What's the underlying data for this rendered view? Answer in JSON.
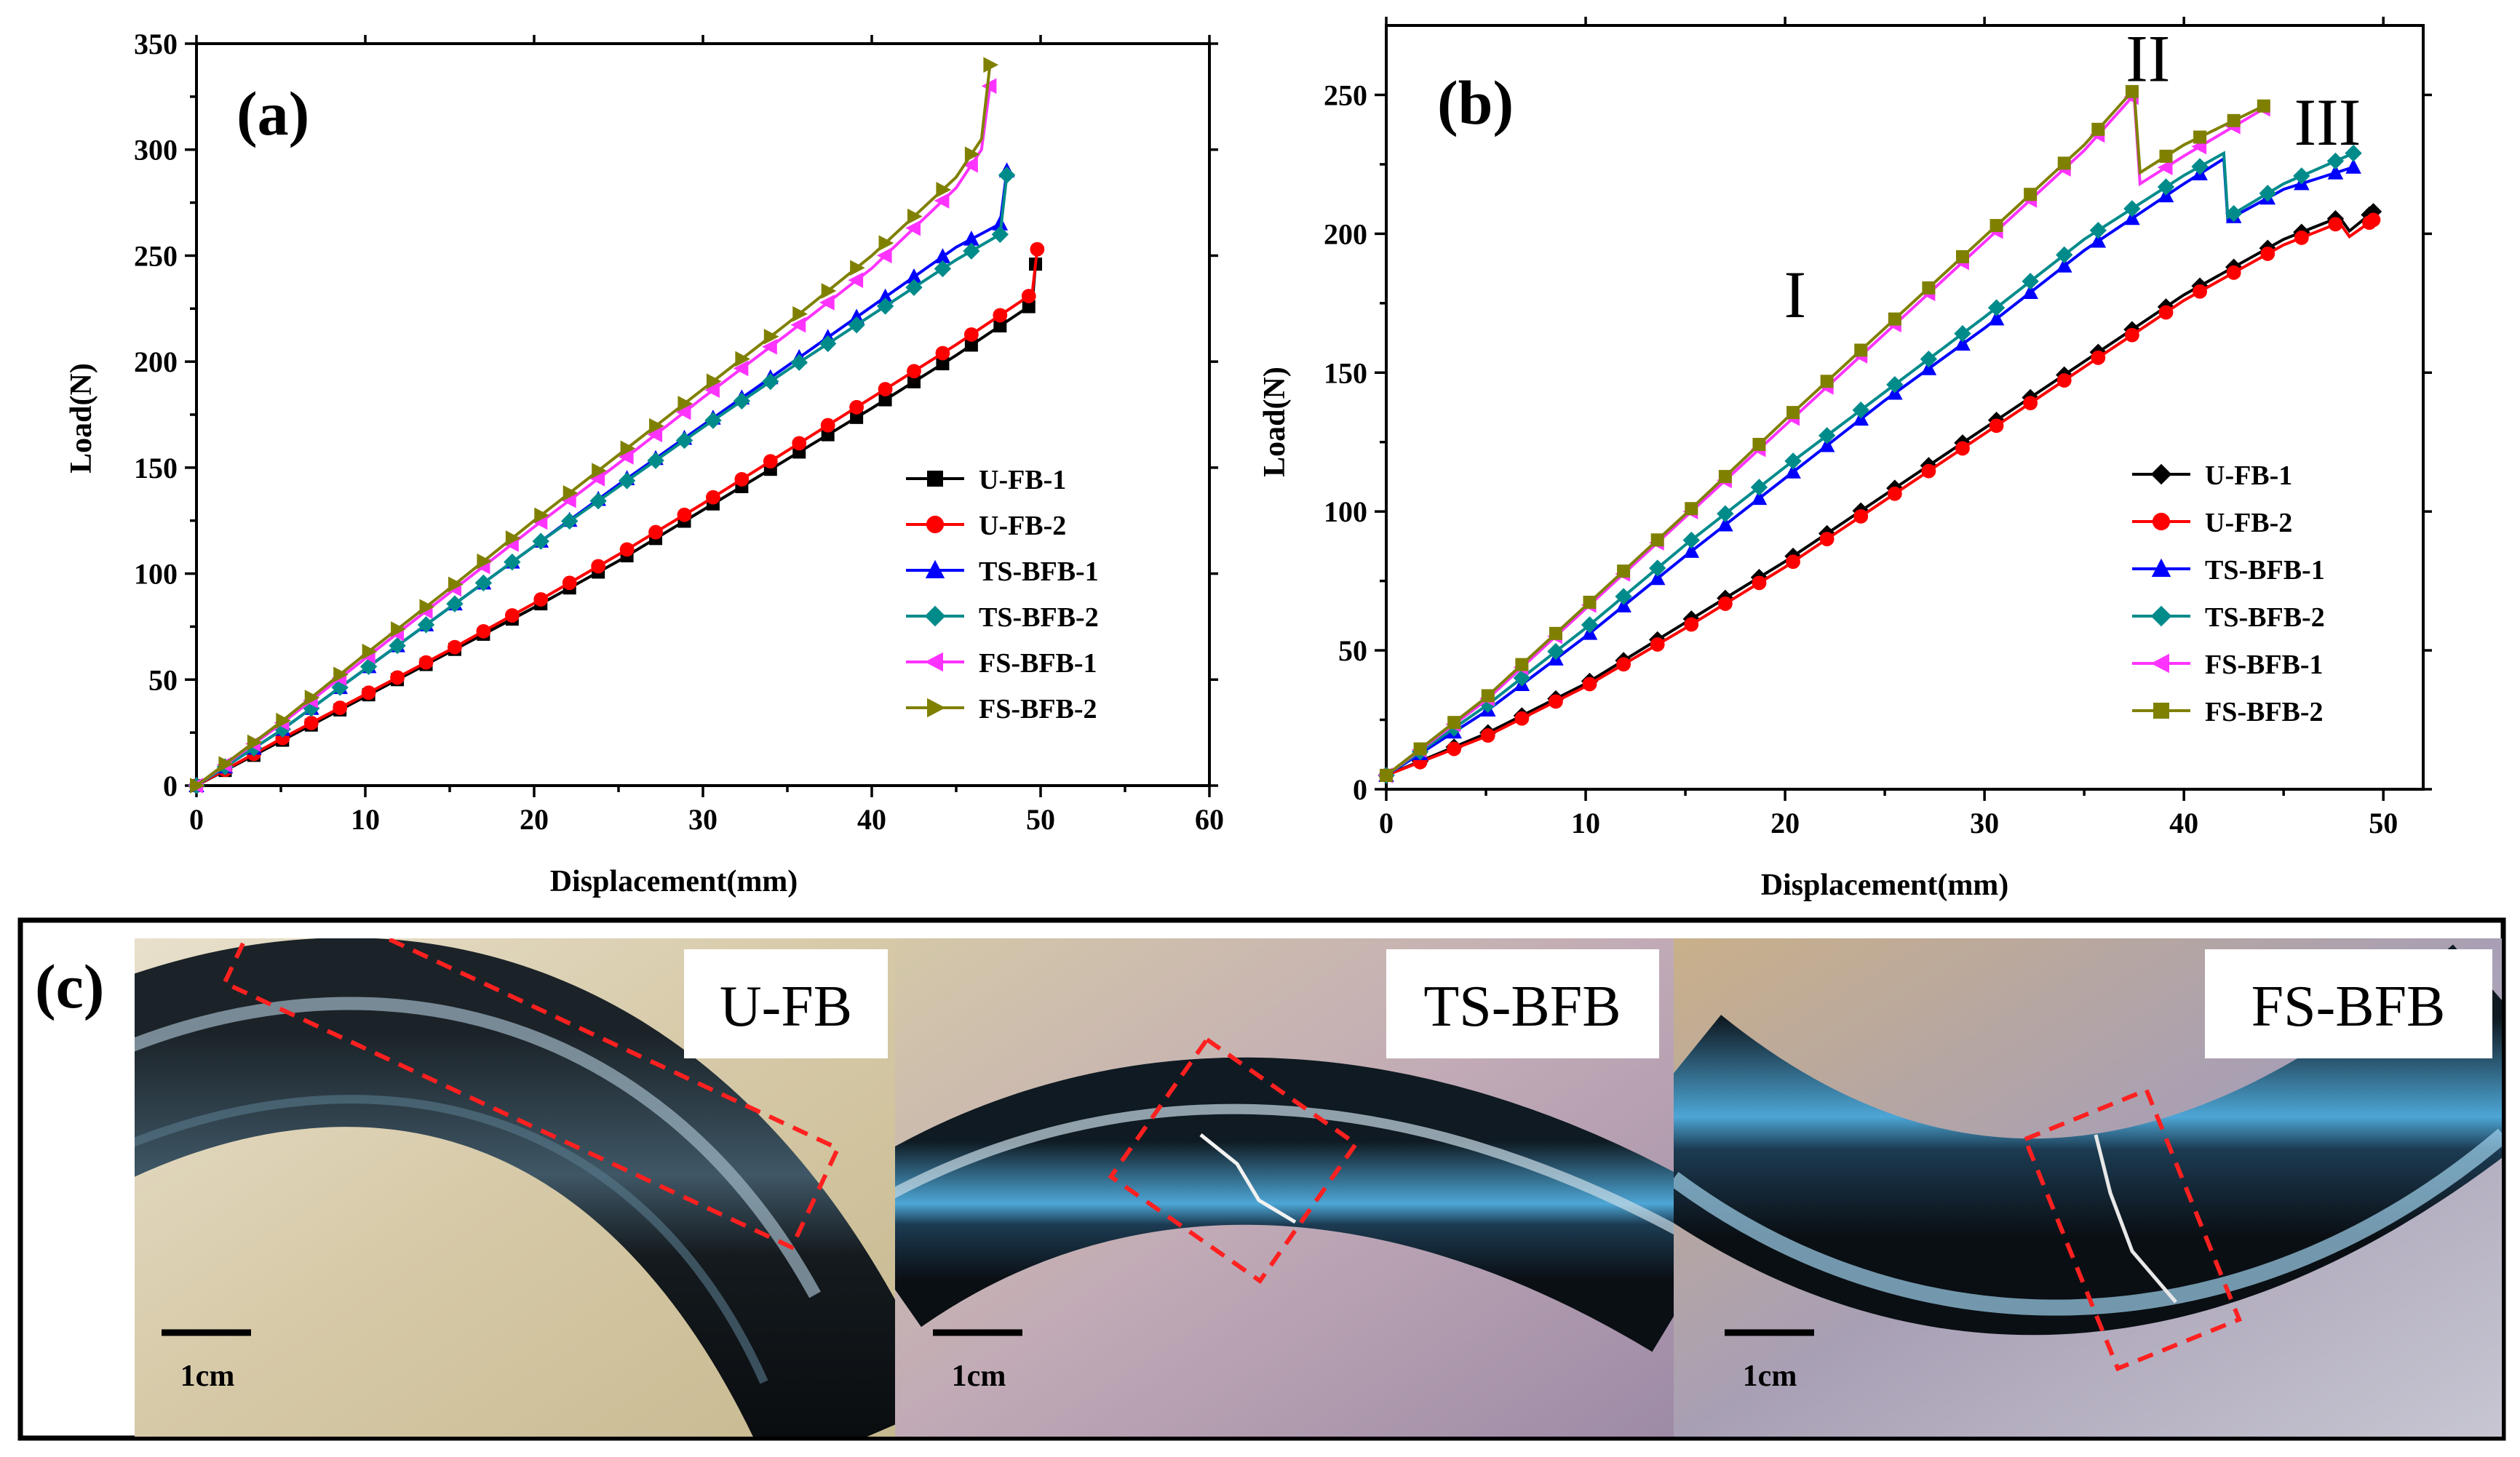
{
  "chart_data": [
    {
      "panel": "(a)",
      "type": "line",
      "title": "",
      "xlabel": "Displacement(mm)",
      "ylabel": "Load(N)",
      "xlim": [
        0,
        60
      ],
      "ylim": [
        0,
        350
      ],
      "xticks": [
        0,
        10,
        20,
        30,
        40,
        50,
        60
      ],
      "yticks": [
        0,
        50,
        100,
        150,
        200,
        250,
        300,
        350
      ],
      "legend_position": "bottom-right",
      "series": [
        {
          "name": "U-FB-1",
          "color": "#000000",
          "marker": "square",
          "x": [
            0,
            5,
            10,
            15,
            20,
            25,
            30,
            35,
            40,
            45,
            49.5,
            49.7
          ],
          "y": [
            0,
            21,
            42,
            63,
            84,
            106,
            130,
            154,
            178,
            203,
            227,
            246
          ]
        },
        {
          "name": "U-FB-2",
          "color": "#ff0000",
          "marker": "circle",
          "x": [
            0,
            5,
            10,
            15,
            20,
            25,
            30,
            35,
            40,
            45,
            49.5,
            49.8
          ],
          "y": [
            0,
            22,
            43,
            64,
            86,
            109,
            133,
            158,
            183,
            208,
            232,
            253
          ]
        },
        {
          "name": "TS-BFB-1",
          "color": "#0000ff",
          "marker": "triangle-up",
          "x": [
            0,
            5,
            10,
            15,
            20,
            25,
            30,
            35,
            40,
            45,
            47.6,
            48
          ],
          "y": [
            0,
            26,
            55,
            84,
            113,
            142,
            170,
            198,
            226,
            254,
            265,
            290
          ]
        },
        {
          "name": "TS-BFB-2",
          "color": "#008b8b",
          "marker": "diamond",
          "x": [
            0,
            5,
            10,
            15,
            20,
            25,
            30,
            35,
            40,
            45,
            47.6,
            48
          ],
          "y": [
            0,
            26,
            55,
            84,
            113,
            141,
            169,
            196,
            222,
            248,
            260,
            288
          ]
        },
        {
          "name": "FS-BFB-1",
          "color": "#ff33ff",
          "marker": "triangle-left",
          "x": [
            0,
            5,
            10,
            15,
            20,
            25,
            30,
            35,
            40,
            45,
            46.5,
            47
          ],
          "y": [
            0,
            29,
            60,
            91,
            122,
            152,
            183,
            213,
            244,
            282,
            300,
            330
          ]
        },
        {
          "name": "FS-BFB-2",
          "color": "#808000",
          "marker": "triangle-right",
          "x": [
            0,
            5,
            10,
            15,
            20,
            25,
            30,
            35,
            40,
            45,
            46.5,
            47
          ],
          "y": [
            0,
            30,
            62,
            93,
            125,
            156,
            187,
            218,
            250,
            287,
            305,
            340
          ]
        }
      ]
    },
    {
      "panel": "(b)",
      "type": "line",
      "title": "",
      "xlabel": "Displacement(mm)",
      "ylabel": "Load(N)",
      "xlim": [
        0,
        52
      ],
      "ylim": [
        0,
        275
      ],
      "xticks": [
        0,
        10,
        20,
        30,
        40,
        50
      ],
      "yticks": [
        0,
        50,
        100,
        150,
        200,
        250
      ],
      "legend_position": "bottom-right",
      "annotations": [
        {
          "text": "I",
          "x": 20.5,
          "y": 170
        },
        {
          "text": "II",
          "x": 38.2,
          "y": 255
        },
        {
          "text": "III",
          "x": 47.2,
          "y": 232
        }
      ],
      "series": [
        {
          "name": "U-FB-1",
          "color": "#000000",
          "marker": "diamond",
          "x": [
            0,
            5,
            10,
            15,
            20,
            25,
            30,
            35,
            40,
            45,
            47.8,
            48.3,
            49.5
          ],
          "y": [
            5,
            20,
            38,
            60,
            82,
            106,
            130,
            154,
            178,
            198,
            206,
            201,
            208
          ]
        },
        {
          "name": "U-FB-2",
          "color": "#ff0000",
          "marker": "circle",
          "x": [
            0,
            5,
            10,
            15,
            20,
            25,
            30,
            35,
            40,
            45,
            47.8,
            48.3,
            49.5
          ],
          "y": [
            5,
            19,
            37,
            58,
            80,
            104,
            128,
            152,
            176,
            196,
            204,
            199,
            205
          ]
        },
        {
          "name": "TS-BFB-1",
          "color": "#0000ff",
          "marker": "triangle-up",
          "x": [
            0,
            5,
            10,
            15,
            20,
            25,
            30,
            35,
            40,
            42,
            42.2,
            45,
            48.5
          ],
          "y": [
            5,
            28,
            55,
            84,
            112,
            140,
            166,
            194,
            218,
            227,
            205,
            216,
            224
          ]
        },
        {
          "name": "TS-BFB-2",
          "color": "#008b8b",
          "marker": "diamond",
          "x": [
            0,
            5,
            10,
            15,
            20,
            25,
            30,
            35,
            40,
            42,
            42.2,
            45,
            48.5
          ],
          "y": [
            5,
            30,
            58,
            88,
            116,
            143,
            170,
            198,
            221,
            229,
            206,
            218,
            229
          ]
        },
        {
          "name": "FS-BFB-1",
          "color": "#ff33ff",
          "marker": "triangle-left",
          "x": [
            0,
            5,
            10,
            15,
            20,
            25,
            30,
            35,
            37.5,
            37.8,
            40,
            44
          ],
          "y": [
            5,
            32,
            65,
            98,
            131,
            164,
            197,
            230,
            250,
            218,
            228,
            245
          ]
        },
        {
          "name": "FS-BFB-2",
          "color": "#808000",
          "marker": "square",
          "x": [
            0,
            5,
            10,
            15,
            20,
            25,
            30,
            35,
            37.5,
            37.8,
            40,
            44
          ],
          "y": [
            5,
            33,
            66,
            99,
            133,
            166,
            199,
            232,
            252,
            222,
            232,
            246
          ]
        }
      ]
    }
  ],
  "photos": {
    "panel": "(c)",
    "items": [
      {
        "label": "U-FB",
        "scale": "1cm"
      },
      {
        "label": "TS-BFB",
        "scale": "1cm"
      },
      {
        "label": "FS-BFB",
        "scale": "1cm"
      }
    ]
  }
}
